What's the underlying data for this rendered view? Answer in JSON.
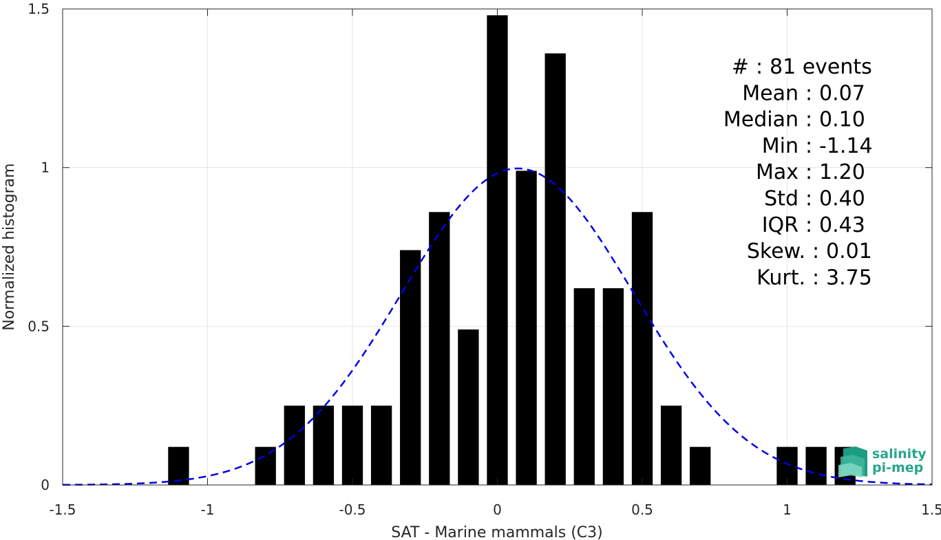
{
  "chart_data": {
    "type": "bar",
    "xlabel": "SAT - Marine mammals (C3)",
    "ylabel": "Normalized histogram",
    "xlim": [
      -1.5,
      1.5
    ],
    "ylim": [
      0,
      1.5
    ],
    "xticks": [
      -1.5,
      -1,
      -0.5,
      0,
      0.5,
      1,
      1.5
    ],
    "xtick_labels": [
      "-1.5",
      "-1",
      "-0.5",
      "0",
      "0.5",
      "1",
      "1.5"
    ],
    "yticks": [
      0,
      0.5,
      1,
      1.5
    ],
    "ytick_labels": [
      "0",
      "0.5",
      "1",
      "1.5"
    ],
    "grid": true,
    "bin_width": 0.1,
    "bars": [
      {
        "x": -1.1,
        "value": 0.12
      },
      {
        "x": -0.8,
        "value": 0.12
      },
      {
        "x": -0.7,
        "value": 0.25
      },
      {
        "x": -0.6,
        "value": 0.25
      },
      {
        "x": -0.5,
        "value": 0.25
      },
      {
        "x": -0.4,
        "value": 0.25
      },
      {
        "x": -0.3,
        "value": 0.74
      },
      {
        "x": -0.2,
        "value": 0.86
      },
      {
        "x": -0.1,
        "value": 0.49
      },
      {
        "x": 0.0,
        "value": 1.48
      },
      {
        "x": 0.1,
        "value": 0.99
      },
      {
        "x": 0.2,
        "value": 1.36
      },
      {
        "x": 0.3,
        "value": 0.62
      },
      {
        "x": 0.4,
        "value": 0.62
      },
      {
        "x": 0.5,
        "value": 0.86
      },
      {
        "x": 0.6,
        "value": 0.25
      },
      {
        "x": 0.7,
        "value": 0.12
      },
      {
        "x": 1.0,
        "value": 0.12
      },
      {
        "x": 1.1,
        "value": 0.12
      },
      {
        "x": 1.2,
        "value": 0.12
      }
    ],
    "fit_curve": {
      "style": "dashed",
      "color": "#0000e6",
      "mean": 0.07,
      "std": 0.4,
      "x_range": [
        -1.5,
        1.5
      ]
    },
    "annotations": [
      {
        "label": "#",
        "sep": ":",
        "value": "81 events"
      },
      {
        "label": "Mean",
        "sep": ":",
        "value": "0.07"
      },
      {
        "label": "Median",
        "sep": ":",
        "value": "0.10"
      },
      {
        "label": "Min",
        "sep": ":",
        "value": "-1.14"
      },
      {
        "label": "Max",
        "sep": ":",
        "value": "1.20"
      },
      {
        "label": "Std",
        "sep": ":",
        "value": "0.40"
      },
      {
        "label": "IQR",
        "sep": ":",
        "value": "0.43"
      },
      {
        "label": "Skew.",
        "sep": ":",
        "value": "0.01"
      },
      {
        "label": "Kurt.",
        "sep": ":",
        "value": "3.75"
      }
    ]
  },
  "logo": {
    "line1": "salinity",
    "line2": "pi-mep",
    "icon": "salinity-pimep-logo-icon"
  },
  "colors": {
    "bar": "#000000",
    "fit": "#0000e6",
    "grid": "#e6e6e6",
    "axis": "#262626",
    "logo": "#27a58c"
  }
}
